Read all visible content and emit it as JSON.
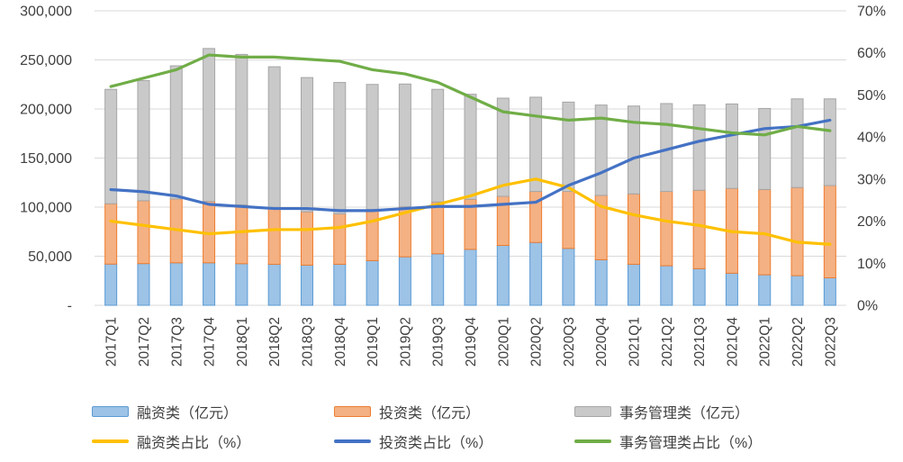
{
  "chart_data": {
    "type": "combo-stacked-bar-line",
    "title": "",
    "background": "#FFFFFF",
    "grid_color": "#D9D9D9",
    "text_color": "#404040",
    "legend_position": "bottom",
    "categories": [
      "2017Q1",
      "2017Q2",
      "2017Q3",
      "2017Q4",
      "2018Q1",
      "2018Q2",
      "2018Q3",
      "2018Q4",
      "2019Q1",
      "2019Q2",
      "2019Q3",
      "2019Q4",
      "2020Q1",
      "2020Q2",
      "2020Q3",
      "2020Q4",
      "2021Q1",
      "2021Q2",
      "2021Q3",
      "2021Q4",
      "2022Q1",
      "2022Q2",
      "2022Q3"
    ],
    "left_axis": {
      "min": 0,
      "max": 300000,
      "step": 50000,
      "tick_labels_top_to_bottom": [
        "300,000",
        "250,000",
        "200,000",
        "150,000",
        "100,000",
        "50,000",
        "-"
      ]
    },
    "right_axis": {
      "min": 0,
      "max": 70,
      "step": 10,
      "tick_labels_top_to_bottom": [
        "70%",
        "60%",
        "50%",
        "40%",
        "30%",
        "20%",
        "10%",
        "0%"
      ]
    },
    "bar_series": [
      {
        "name": "融资类（亿元）",
        "fill": "#9DC3E6",
        "border": "#5B9BD5",
        "values": [
          42000,
          42500,
          43300,
          43300,
          42400,
          41800,
          40900,
          41800,
          45500,
          49400,
          52500,
          57000,
          61000,
          64000,
          58000,
          46400,
          41800,
          40300,
          37300,
          32700,
          31100,
          30200,
          28000
        ]
      },
      {
        "name": "投资类（亿元）",
        "fill": "#F4B183",
        "border": "#ED7D31",
        "values": [
          61500,
          64000,
          65000,
          62600,
          59900,
          58000,
          54300,
          51300,
          52000,
          51000,
          52800,
          51000,
          50000,
          52000,
          58000,
          65600,
          71700,
          75700,
          79900,
          86400,
          86900,
          89800,
          94000
        ]
      },
      {
        "name": "事务管理类（亿元）",
        "fill": "#C9C9C9",
        "border": "#A6A6A6",
        "values": [
          116500,
          122500,
          135700,
          155700,
          153300,
          143200,
          136800,
          133900,
          127500,
          125000,
          114700,
          107000,
          100000,
          96000,
          91000,
          92000,
          89500,
          89500,
          87000,
          86000,
          82500,
          90300,
          88300
        ]
      }
    ],
    "line_series": [
      {
        "name": "融资类占比（%）",
        "color": "#FFC000",
        "values": [
          20,
          19,
          18,
          17,
          17.5,
          18,
          18,
          18.5,
          20,
          22,
          24,
          26,
          28.5,
          30,
          28,
          23.5,
          21.5,
          20,
          19,
          17.5,
          17,
          15,
          14.5
        ]
      },
      {
        "name": "投资类占比（%）",
        "color": "#4472C4",
        "values": [
          27.5,
          27,
          26,
          24,
          23.5,
          23,
          23,
          22.5,
          22.5,
          23,
          23.5,
          23.5,
          24,
          24.5,
          28.5,
          31.5,
          35,
          37,
          39,
          40.5,
          42,
          42.5,
          44
        ]
      },
      {
        "name": "事务管理类占比（%）",
        "color": "#70AD47",
        "values": [
          52,
          54,
          56,
          59.5,
          59,
          59,
          58.5,
          58,
          56,
          55,
          53,
          49.5,
          46,
          45,
          44,
          44.5,
          43.5,
          43,
          42,
          41,
          40.5,
          42.5,
          41.5
        ]
      }
    ]
  }
}
